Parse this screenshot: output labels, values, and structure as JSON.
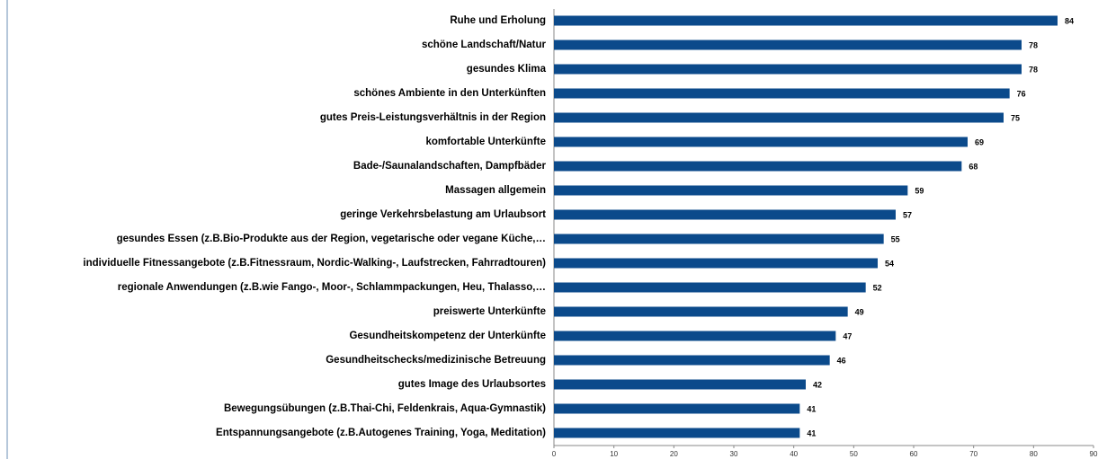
{
  "chart_data": {
    "type": "barh",
    "categories": [
      "Ruhe und Erholung",
      "schöne Landschaft/Natur",
      "gesundes Klima",
      "schönes Ambiente in den Unterkünften",
      "gutes Preis-Leistungsverhältnis in der Region",
      "komfortable Unterkünfte",
      "Bade-/Saunalandschaften, Dampfbäder",
      "Massagen allgemein",
      "geringe Verkehrsbelastung am Urlaubsort",
      "gesundes Essen (z.B.Bio-Produkte aus der Region, vegetarische oder vegane Küche,…",
      "individuelle Fitnessangebote (z.B.Fitnessraum, Nordic-Walking-, Laufstrecken, Fahrradtouren)",
      "regionale Anwendungen (z.B.wie Fango-, Moor-, Schlammpackungen, Heu, Thalasso,…",
      "preiswerte Unterkünfte",
      "Gesundheitskompetenz der Unterkünfte",
      "Gesundheitschecks/medizinische Betreuung",
      "gutes Image des Urlaubsortes",
      "Bewegungsübungen (z.B.Thai-Chi, Feldenkrais, Aqua-Gymnastik)",
      "Entspannungsangebote (z.B.Autogenes Training, Yoga, Meditation)"
    ],
    "values": [
      84,
      78,
      78,
      76,
      75,
      69,
      68,
      59,
      57,
      55,
      54,
      52,
      49,
      47,
      46,
      42,
      41,
      41
    ],
    "color": "#0b4a8b",
    "xlim": [
      0,
      90
    ],
    "xticks": [
      0,
      10,
      20,
      30,
      40,
      50,
      60,
      70,
      80,
      90
    ]
  }
}
